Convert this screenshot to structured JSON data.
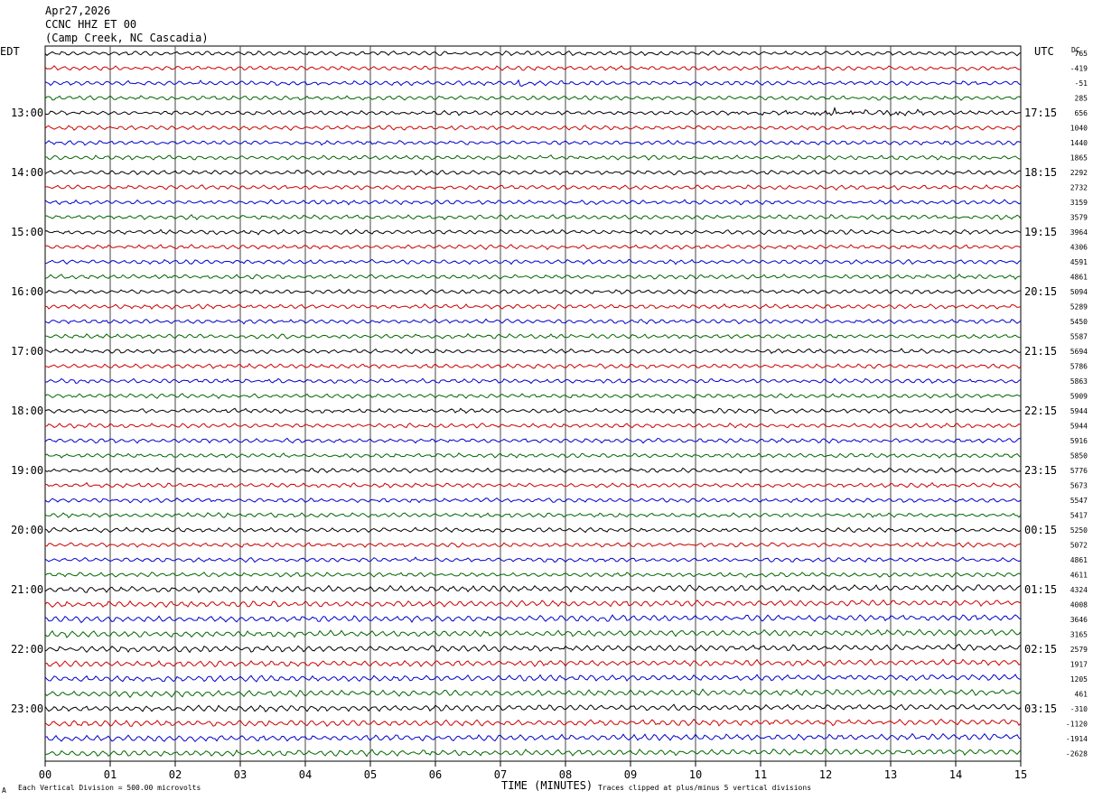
{
  "header": {
    "date": "Apr27,2026",
    "station": "CCNC HHZ ET 00",
    "location": "(Camp Creek, NC Cascadia)"
  },
  "labels": {
    "left_tz": "EDT",
    "right_tz": "UTC",
    "dc": "DC"
  },
  "footer": {
    "scale_note": "Each Vertical Division =  500.00 microvolts",
    "clip_note": "Traces clipped at plus/minus 5 vertical divisions",
    "corner_mark": "A"
  },
  "colors": {
    "trace_cycle": [
      "#000000",
      "#cc0000",
      "#0000cc",
      "#006600"
    ],
    "grid": "#000000",
    "background": "#ffffff"
  },
  "chart_data": {
    "type": "line",
    "subtype": "helicorder",
    "xlabel": "TIME (MINUTES)",
    "x_ticks": [
      "00",
      "01",
      "02",
      "03",
      "04",
      "05",
      "06",
      "07",
      "08",
      "09",
      "10",
      "11",
      "12",
      "13",
      "14",
      "15"
    ],
    "xlim": [
      0,
      15
    ],
    "traces_per_hour": 4,
    "minutes_per_trace": 15,
    "left_hour_labels": [
      "13:00",
      "14:00",
      "15:00",
      "16:00",
      "17:00",
      "18:00",
      "19:00",
      "20:00",
      "21:00",
      "22:00",
      "23:00"
    ],
    "right_hour_labels": [
      "17:15",
      "18:15",
      "19:15",
      "20:15",
      "21:15",
      "22:15",
      "23:15",
      "00:15",
      "01:15",
      "02:15",
      "03:15"
    ],
    "dc_offsets": [
      765,
      -419,
      -51,
      285,
      656,
      1040,
      1440,
      1865,
      2292,
      2732,
      3159,
      3579,
      3964,
      4306,
      4591,
      4861,
      5094,
      5289,
      5450,
      5587,
      5694,
      5786,
      5863,
      5909,
      5944,
      5944,
      5916,
      5850,
      5776,
      5673,
      5547,
      5417,
      5250,
      5072,
      4861,
      4611,
      4324,
      4008,
      3646,
      3165,
      2579,
      1917,
      1205,
      461,
      -310,
      -1120,
      -1914,
      -2628
    ]
  }
}
